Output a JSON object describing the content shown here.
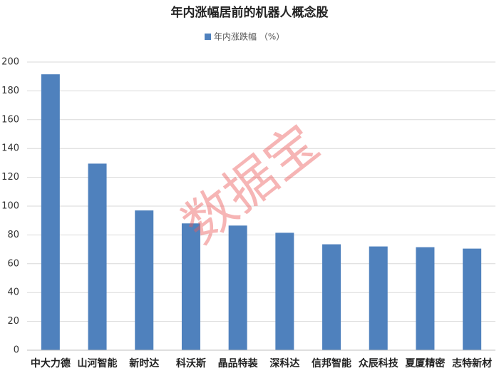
{
  "chart_data": {
    "type": "bar",
    "title": "年内涨幅居前的机器人概念股",
    "categories": [
      "中大力德",
      "山河智能",
      "新时达",
      "科沃斯",
      "晶品特装",
      "深科达",
      "信邦智能",
      "众辰科技",
      "夏厦精密",
      "志特新材"
    ],
    "series": [
      {
        "name": "年内涨跌幅 （%）",
        "color": "#4f81bd",
        "values": [
          191.5,
          129.5,
          97,
          88,
          86.5,
          81.5,
          73.5,
          72,
          71.5,
          70.5
        ]
      }
    ],
    "ylim": [
      0,
      200
    ],
    "yticks": [
      0,
      20,
      40,
      60,
      80,
      100,
      120,
      140,
      160,
      180,
      200
    ],
    "grid": true,
    "watermark": "数据宝"
  }
}
